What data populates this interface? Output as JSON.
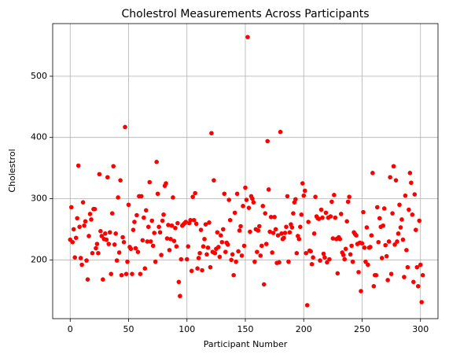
{
  "chart_data": {
    "type": "scatter",
    "title": "Cholestrol Measurements Across Participants",
    "x_label": "Participant Number",
    "y_label": "Cholestrol",
    "color": "#ff0000",
    "grid": true,
    "xlim": [
      -15,
      315
    ],
    "xticks": [
      0,
      50,
      100,
      150,
      200,
      250,
      300
    ],
    "ylim": [
      104,
      586
    ],
    "yticks": [
      200,
      300,
      400,
      500
    ],
    "x": [
      0,
      1,
      2,
      3,
      4,
      5,
      6,
      7,
      8,
      9,
      10,
      11,
      12,
      13,
      14,
      15,
      16,
      17,
      18,
      19,
      20,
      21,
      22,
      23,
      24,
      25,
      26,
      27,
      28,
      29,
      30,
      31,
      32,
      33,
      34,
      35,
      36,
      37,
      38,
      39,
      40,
      41,
      42,
      43,
      44,
      45,
      46,
      47,
      48,
      49,
      50,
      51,
      52,
      53,
      54,
      55,
      56,
      57,
      58,
      59,
      60,
      61,
      62,
      63,
      64,
      65,
      66,
      67,
      68,
      69,
      70,
      71,
      72,
      73,
      74,
      75,
      76,
      77,
      78,
      79,
      80,
      81,
      82,
      83,
      84,
      85,
      86,
      87,
      88,
      89,
      90,
      91,
      92,
      93,
      94,
      95,
      96,
      97,
      98,
      99,
      100,
      101,
      102,
      103,
      104,
      105,
      106,
      107,
      108,
      109,
      110,
      111,
      112,
      113,
      114,
      115,
      116,
      117,
      118,
      119,
      120,
      121,
      122,
      123,
      124,
      125,
      126,
      127,
      128,
      129,
      130,
      131,
      132,
      133,
      134,
      135,
      136,
      137,
      138,
      139,
      140,
      141,
      142,
      143,
      144,
      145,
      146,
      147,
      148,
      149,
      150,
      151,
      152,
      153,
      154,
      155,
      156,
      157,
      158,
      159,
      160,
      161,
      162,
      163,
      164,
      165,
      166,
      167,
      168,
      169,
      170,
      171,
      172,
      173,
      174,
      175,
      176,
      177,
      178,
      179,
      180,
      181,
      182,
      183,
      184,
      185,
      186,
      187,
      188,
      189,
      190,
      191,
      192,
      193,
      194,
      195,
      196,
      197,
      198,
      199,
      200,
      201,
      202,
      203,
      204,
      205,
      206,
      207,
      208,
      209,
      210,
      211,
      212,
      213,
      214,
      215,
      216,
      217,
      218,
      219,
      220,
      221,
      222,
      223,
      224,
      225,
      226,
      227,
      228,
      229,
      230,
      231,
      232,
      233,
      234,
      235,
      236,
      237,
      238,
      239,
      240,
      241,
      242,
      243,
      244,
      245,
      246,
      247,
      248,
      249,
      250,
      251,
      252,
      253,
      254,
      255,
      256,
      257,
      258,
      259,
      260,
      261,
      262,
      263,
      264,
      265,
      266,
      267,
      268,
      269,
      270,
      271,
      272,
      273,
      274,
      275,
      276,
      277,
      278,
      279,
      280,
      281,
      282,
      283,
      284,
      285,
      286,
      287,
      288,
      289,
      290,
      291,
      292,
      293,
      294,
      295,
      296,
      297,
      298,
      299,
      300,
      301,
      302
    ],
    "values": [
      233,
      286,
      229,
      250,
      204,
      236,
      268,
      354,
      254,
      203,
      192,
      294,
      256,
      263,
      199,
      168,
      239,
      275,
      266,
      211,
      283,
      283,
      219,
      226,
      211,
      340,
      247,
      239,
      168,
      234,
      243,
      233,
      335,
      226,
      245,
      177,
      276,
      353,
      225,
      243,
      199,
      302,
      212,
      330,
      175,
      237,
      229,
      417,
      177,
      197,
      290,
      221,
      218,
      177,
      249,
      262,
      219,
      273,
      213,
      304,
      177,
      304,
      232,
      269,
      186,
      281,
      230,
      254,
      327,
      230,
      264,
      223,
      244,
      197,
      360,
      308,
      254,
      245,
      208,
      264,
      274,
      321,
      325,
      235,
      257,
      216,
      234,
      256,
      302,
      231,
      252,
      222,
      260,
      164,
      141,
      201,
      256,
      258,
      260,
      262,
      201,
      222,
      260,
      265,
      182,
      303,
      265,
      309,
      259,
      186,
      203,
      211,
      249,
      183,
      222,
      234,
      258,
      209,
      220,
      261,
      188,
      407,
      213,
      330,
      211,
      218,
      245,
      221,
      205,
      240,
      229,
      250,
      308,
      213,
      228,
      225,
      298,
      265,
      200,
      209,
      175,
      277,
      197,
      308,
      214,
      248,
      255,
      207,
      288,
      223,
      318,
      298,
      564,
      285,
      246,
      304,
      300,
      294,
      197,
      250,
      213,
      248,
      255,
      207,
      223,
      288,
      160,
      276,
      226,
      394,
      315,
      246,
      270,
      212,
      244,
      270,
      250,
      195,
      240,
      196,
      409,
      243,
      234,
      236,
      244,
      254,
      304,
      197,
      245,
      258,
      253,
      276,
      294,
      299,
      211,
      239,
      234,
      254,
      274,
      325,
      305,
      313,
      211,
      126,
      262,
      215,
      214,
      193,
      204,
      243,
      303,
      271,
      268,
      267,
      199,
      282,
      269,
      210,
      204,
      277,
      196,
      269,
      201,
      271,
      295,
      235,
      306,
      269,
      234,
      178,
      237,
      234,
      275,
      212,
      208,
      201,
      218,
      263,
      295,
      303,
      209,
      223,
      197,
      245,
      242,
      240,
      226,
      180,
      228,
      149,
      227,
      278,
      220,
      197,
      253,
      192,
      220,
      221,
      240,
      342,
      157,
      175,
      175,
      286,
      229,
      268,
      254,
      203,
      256,
      284,
      224,
      206,
      167,
      230,
      335,
      177,
      276,
      353,
      225,
      330,
      230,
      243,
      290,
      253,
      266,
      233,
      172,
      305,
      216,
      188,
      282,
      342,
      326,
      274,
      164,
      307,
      249,
      188,
      157,
      264,
      192,
      131,
      175
    ]
  }
}
